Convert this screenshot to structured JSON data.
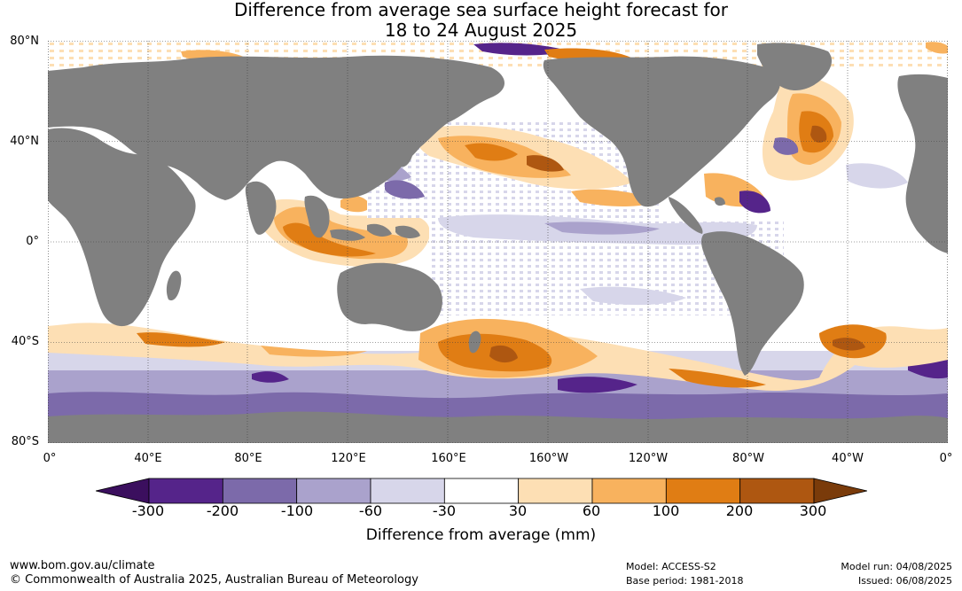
{
  "title_line1": "Difference from average sea surface height forecast for",
  "title_line2": "18 to 24 August 2025",
  "map": {
    "lat_labels": [
      "80°N",
      "40°N",
      "0°",
      "40°S",
      "80°S"
    ],
    "lon_labels": [
      "0°",
      "40°E",
      "80°E",
      "120°E",
      "160°E",
      "160°W",
      "120°W",
      "80°W",
      "40°W",
      "0°"
    ],
    "land_color": "#808080",
    "ocean_color": "#ffffff"
  },
  "colorbar": {
    "ticks": [
      "-300",
      "-200",
      "-100",
      "-60",
      "-30",
      "30",
      "60",
      "100",
      "200",
      "300"
    ],
    "colors": [
      "#3b0f5e",
      "#55248a",
      "#7c6aaa",
      "#aaa2cc",
      "#d7d6ea",
      "#ffffff",
      "#fddfb4",
      "#f8b25e",
      "#e07d14",
      "#ae5711",
      "#7a3b0a"
    ],
    "title": "Difference from average (mm)"
  },
  "footer": {
    "website": "www.bom.gov.au/climate",
    "copyright": "© Commonwealth of Australia 2025, Australian Bureau of Meteorology",
    "model": "Model: ACCESS-S2",
    "base_period": "Base period: 1981-2018",
    "model_run": "Model run: 04/08/2025",
    "issued": "Issued: 06/08/2025"
  }
}
